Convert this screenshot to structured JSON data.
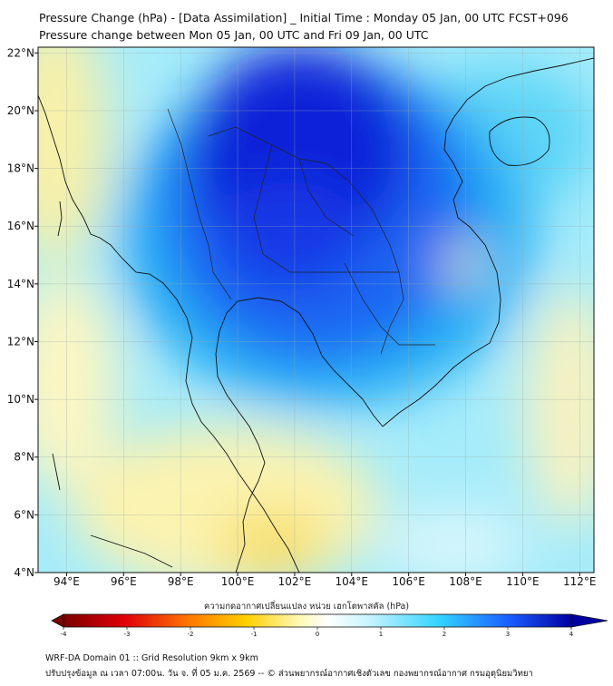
{
  "title_line1": "Pressure Change (hPa) - [Data Assimilation] _ Initial Time : Monday 05 Jan, 00 UTC FCST+096",
  "title_line2": "Pressure change between Mon 05 Jan, 00 UTC and Fri 09 Jan, 00 UTC",
  "map": {
    "lon_range": [
      93,
      112.5
    ],
    "lat_range": [
      4,
      22.2
    ],
    "lon_ticks": [
      94,
      96,
      98,
      100,
      102,
      104,
      106,
      108,
      110,
      112
    ],
    "lon_labels": [
      "94°E",
      "96°E",
      "98°E",
      "100°E",
      "102°E",
      "104°E",
      "106°E",
      "108°E",
      "110°E",
      "112°E"
    ],
    "lat_ticks": [
      22,
      20,
      18,
      16,
      14,
      12,
      10,
      8,
      6,
      4
    ],
    "lat_labels": [
      "22°N",
      "20°N",
      "18°N",
      "16°N",
      "14°N",
      "12°N",
      "10°N",
      "8°N",
      "6°N",
      "4°N"
    ],
    "gridlines": true
  },
  "colorbar": {
    "title": "ความกดอากาศเปลี่ยนแปลง หน่วย เฮกโตพาสคัล (hPa)",
    "min": -4,
    "max": 4,
    "tick_values": [
      -4,
      -3,
      -2,
      -1,
      0,
      1,
      2,
      3,
      4
    ],
    "tick_labels": [
      "-4",
      "-3",
      "-2",
      "-1",
      "0",
      "1",
      "2",
      "3",
      "4"
    ],
    "colors": [
      "#7a0000",
      "#e0000a",
      "#ff7a00",
      "#ffd000",
      "#fff7b0",
      "#ffffff",
      "#c8f4ff",
      "#30d4ff",
      "#1a5cff",
      "#0000a0"
    ],
    "placement": "bottom",
    "extend": "both"
  },
  "footer_line1": "WRF-DA Domain 01 :: Grid Resolution 9km x 9km",
  "footer_line2": "ปรับปรุงข้อมูล ณ เวลา 07:00น. วัน จ. ที่ 05 ม.ค. 2569 -- © ส่วนพยากรณ์อากาศเชิงตัวเลข กองพยากรณ์อากาศ กรมอุตุนิยมวิทยา"
}
